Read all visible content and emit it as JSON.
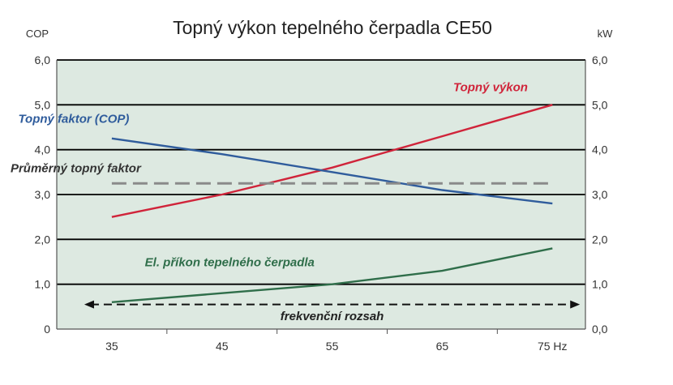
{
  "chart_data": {
    "type": "line",
    "title": "Topný výkon tepelného čerpadla CE50",
    "left_axis_unit": "COP",
    "right_axis_unit": "kW",
    "x_ticks": [
      "35",
      "45",
      "55",
      "65",
      "75 Hz"
    ],
    "x_values": [
      35,
      45,
      55,
      65,
      75
    ],
    "xlim": [
      30,
      78
    ],
    "ylim": [
      0,
      6
    ],
    "left_ticks": [
      "0",
      "1,0",
      "2,0",
      "3,0",
      "4,0",
      "5,0",
      "6,0"
    ],
    "right_ticks": [
      "0,0",
      "1,0",
      "2,0",
      "3,0",
      "4,0",
      "5,0",
      "6,0"
    ],
    "tick_values": [
      0,
      1,
      2,
      3,
      4,
      5,
      6
    ],
    "grid": true,
    "colors": {
      "plot_bg": "#dde9e1",
      "grid": "#000000",
      "red": "#d0243a",
      "blue": "#2f5c9c",
      "gray": "#8a8a8a",
      "green": "#2f6e4a",
      "text": "#333333"
    },
    "series": [
      {
        "name": "Topný výkon",
        "color": "red",
        "style": "solid",
        "points": [
          [
            35,
            2.5
          ],
          [
            40,
            2.75
          ],
          [
            45,
            3.0
          ],
          [
            50,
            3.3
          ],
          [
            55,
            3.6
          ],
          [
            60,
            3.95
          ],
          [
            65,
            4.3
          ],
          [
            70,
            4.65
          ],
          [
            75,
            5.0
          ]
        ]
      },
      {
        "name": "Topný faktor (COP)",
        "color": "blue",
        "style": "solid",
        "points": [
          [
            35,
            4.25
          ],
          [
            45,
            3.9
          ],
          [
            55,
            3.5
          ],
          [
            65,
            3.1
          ],
          [
            75,
            2.8
          ]
        ]
      },
      {
        "name": "Průměrný topný faktor",
        "color": "gray",
        "style": "dashed",
        "points": [
          [
            35,
            3.25
          ],
          [
            75,
            3.25
          ]
        ]
      },
      {
        "name": "El. příkon tepelného čerpadla",
        "color": "green",
        "style": "solid",
        "points": [
          [
            35,
            0.6
          ],
          [
            45,
            0.8
          ],
          [
            55,
            1.0
          ],
          [
            65,
            1.3
          ],
          [
            75,
            1.8
          ]
        ]
      }
    ],
    "annotations": {
      "series_labels": [
        {
          "text": "Topný výkon",
          "color": "red",
          "x": 66,
          "y": 5.3
        },
        {
          "text": "Topný faktor (COP)",
          "color": "blue",
          "x": 26.5,
          "y": 4.6
        },
        {
          "text": "Průměrný topný faktor",
          "color": "text",
          "x": 25.8,
          "y": 3.5
        },
        {
          "text": "El. příkon tepelného čerpadla",
          "color": "green",
          "x": 38,
          "y": 1.4
        }
      ],
      "range_arrow": {
        "label": "frekvenční rozsah",
        "x_from": 32.5,
        "x_to": 77.5,
        "y": 0.55,
        "label_x": 55,
        "label_y": 0.2
      }
    }
  }
}
